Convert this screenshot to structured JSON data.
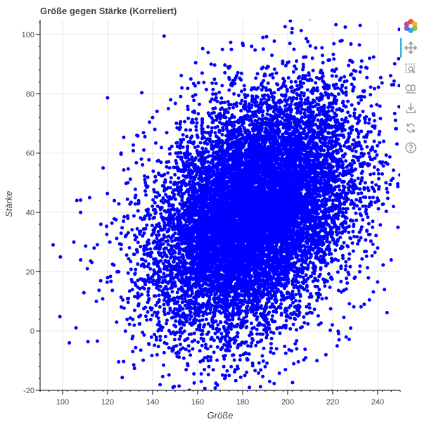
{
  "chart_data": {
    "type": "scatter",
    "title": "Größe gegen Stärke (Korreliert)",
    "xlabel": "Größe",
    "ylabel": "Stärke",
    "xlim": [
      90,
      250
    ],
    "ylim": [
      -20,
      105
    ],
    "x_ticks": [
      100,
      120,
      140,
      160,
      180,
      200,
      220,
      240
    ],
    "y_ticks": [
      -20,
      0,
      20,
      40,
      60,
      80,
      100
    ],
    "grid": true,
    "point_color": "#0000ff",
    "distribution": {
      "x_center": 185,
      "y_center": 40,
      "x_spread": 22,
      "y_spread": 20,
      "correlation": 0.35
    },
    "x": [
      99,
      103,
      108,
      112,
      115,
      118,
      121,
      124,
      126,
      129,
      131,
      133,
      135,
      137,
      140,
      142,
      145,
      148,
      151,
      154,
      157,
      160,
      163,
      166,
      169,
      172,
      175,
      178,
      181,
      184,
      187,
      190,
      193,
      196,
      199,
      202,
      205,
      208,
      211,
      214,
      217,
      220,
      223,
      226,
      229,
      232,
      235,
      238,
      241,
      244,
      247,
      249,
      246,
      243,
      240,
      237,
      234,
      231,
      228,
      225,
      222,
      219,
      216,
      213,
      210,
      207,
      204,
      201,
      198,
      195,
      192,
      189,
      186,
      183,
      180,
      177,
      174,
      171,
      168,
      165,
      162,
      159,
      156,
      153,
      150,
      147,
      144,
      141,
      138,
      135,
      132,
      129,
      126,
      123,
      120,
      117,
      114,
      111,
      108,
      105
    ],
    "y": [
      25,
      -4,
      24,
      45,
      10,
      55,
      30,
      3,
      60,
      38,
      14,
      66,
      22,
      5,
      72,
      -8,
      49,
      78,
      18,
      2,
      85,
      60,
      -13,
      90,
      40,
      -16,
      95,
      30,
      -15,
      96,
      55,
      -12,
      93,
      70,
      -13,
      102,
      65,
      -9,
      92,
      35,
      -8,
      88,
      75,
      -2,
      81,
      20,
      66,
      48,
      57,
      48,
      42,
      35,
      24,
      14,
      28,
      61,
      9,
      70,
      1,
      76,
      -5,
      56,
      84,
      -10,
      48,
      89,
      -6,
      97,
      12,
      87,
      -17,
      99,
      26,
      -19,
      97,
      45,
      -15,
      95,
      11,
      -12,
      87,
      52,
      -5,
      82,
      33,
      75,
      1,
      68,
      41,
      58,
      7,
      50,
      33,
      44,
      18,
      36,
      28,
      21,
      40,
      30
    ]
  },
  "toolbar": {
    "logo": "bokeh-logo",
    "tools": [
      "pan-icon",
      "box-zoom-icon",
      "wheel-zoom-icon",
      "save-icon",
      "reset-icon",
      "help-icon"
    ],
    "active_tool": "pan-icon",
    "active_color": "#26aae1",
    "icon_color": "#9a9a9a"
  }
}
